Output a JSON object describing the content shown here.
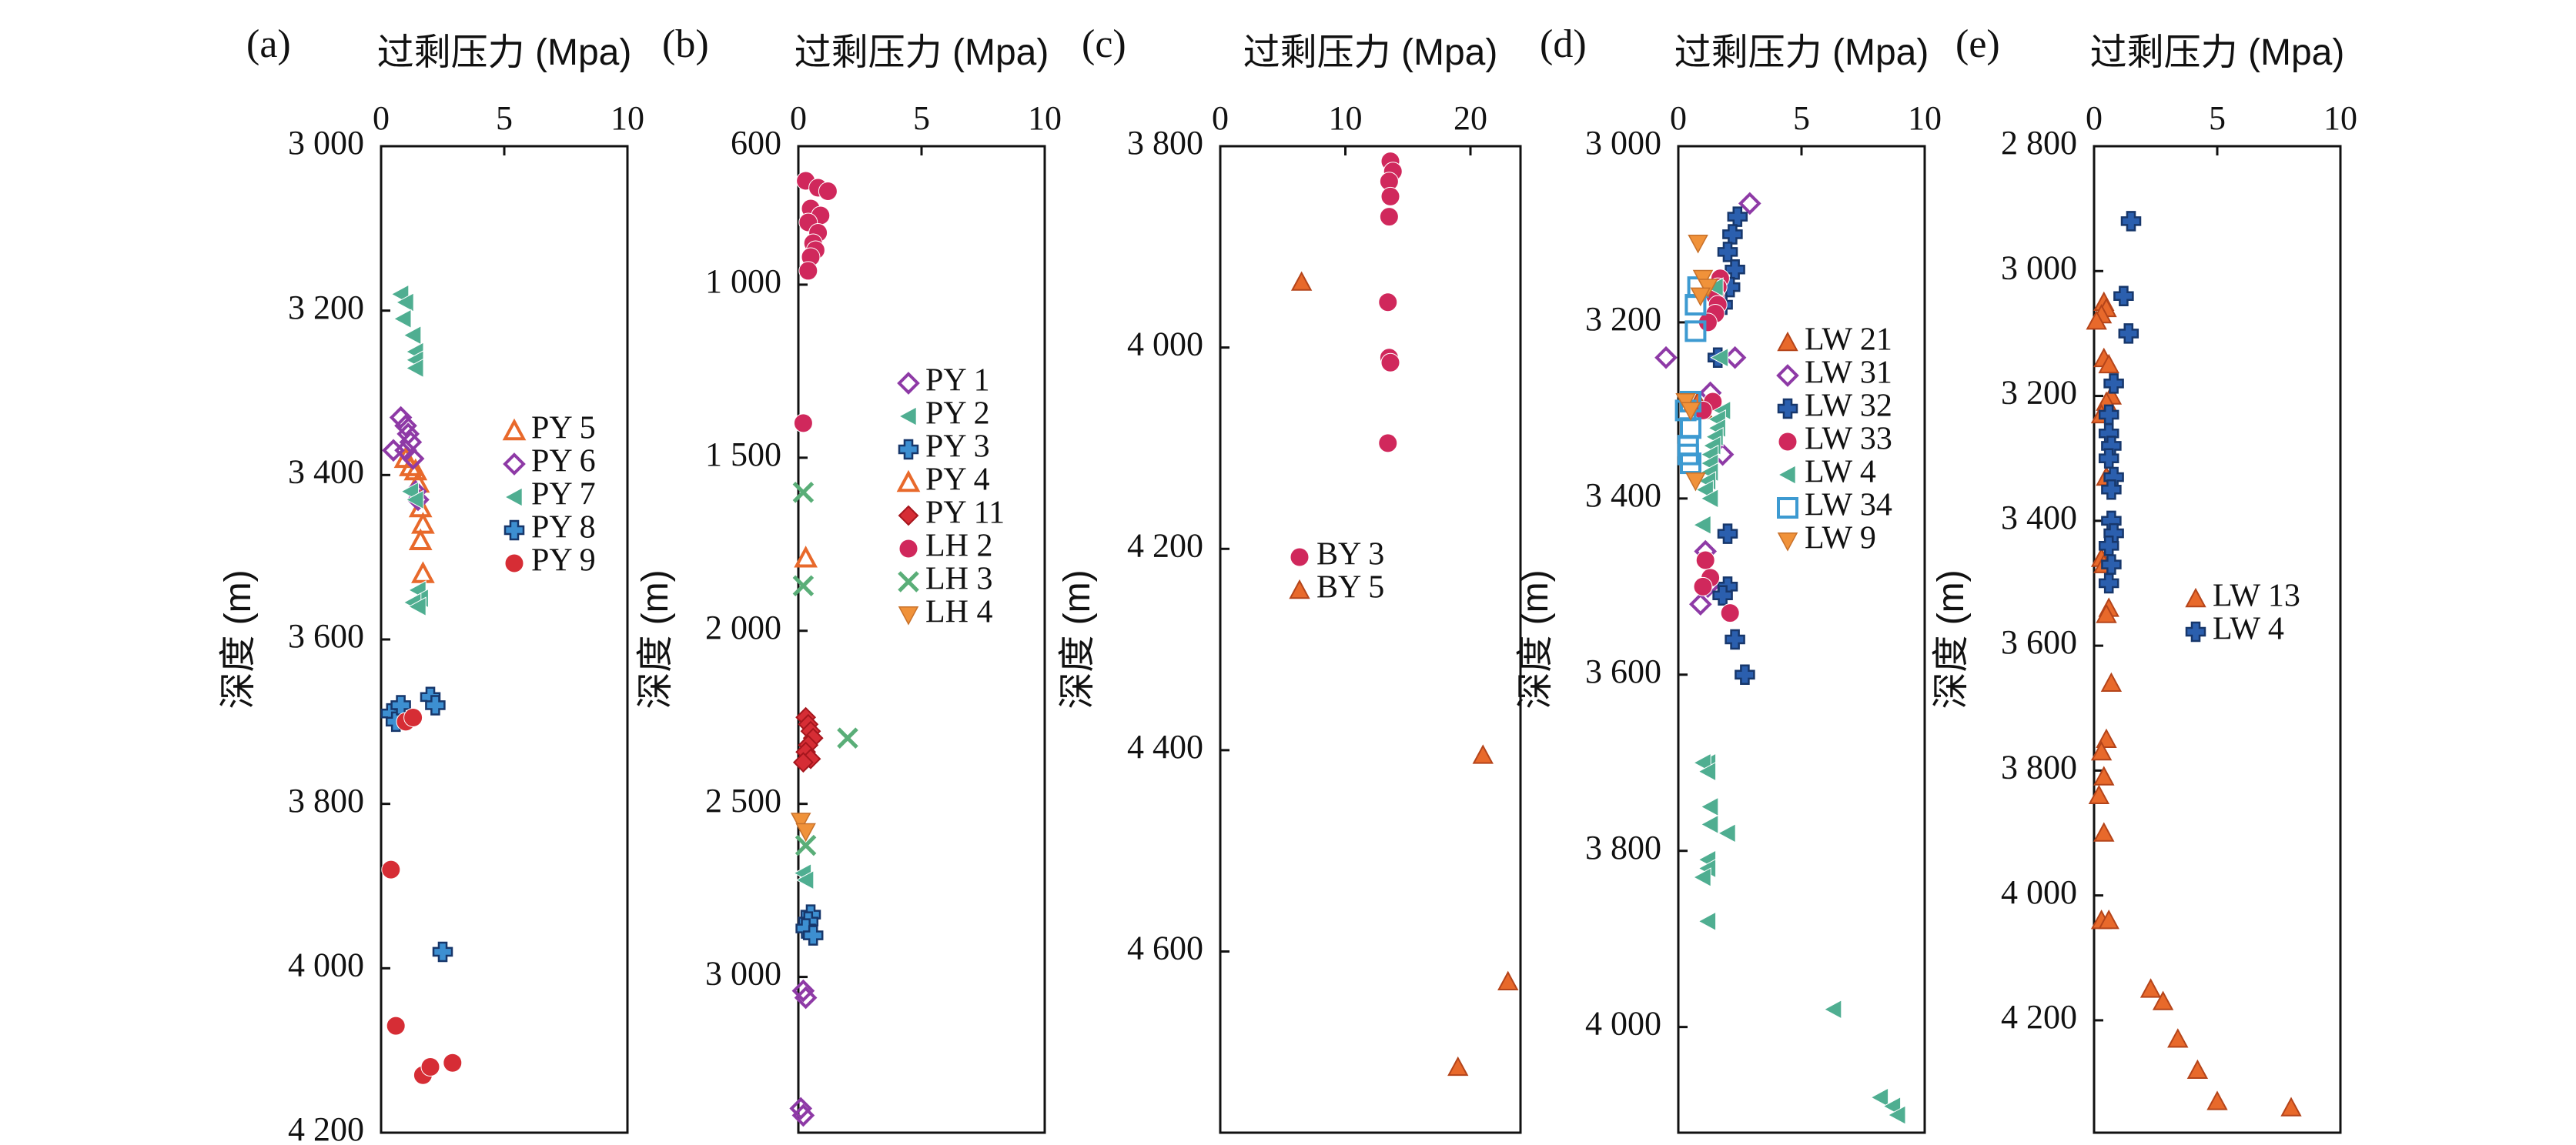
{
  "figure": {
    "shared_axis_labels": {
      "x": "过剩压力 (Mpa)",
      "y": "深度 (m)"
    }
  },
  "chart_data": [
    {
      "id": "a",
      "panel_label": "(a)",
      "type": "scatter",
      "xlabel": "过剩压力 (Mpa)",
      "ylabel": "深度 (m)",
      "xlim": [
        0,
        10
      ],
      "ylim": [
        4200,
        3000
      ],
      "y_inverted": true,
      "xticks": [
        0,
        5,
        10
      ],
      "xtick_labels": [
        "0",
        "5",
        "10"
      ],
      "yticks": [
        3000,
        3200,
        3400,
        3600,
        3800,
        4000,
        4200
      ],
      "ytick_labels": [
        "3 000",
        "3 200",
        "3 400",
        "3 600",
        "3 800",
        "4 000",
        "4 200"
      ],
      "legend_position": "right",
      "series": [
        {
          "name": "PY 5",
          "marker": "triangle-up-open",
          "color": "#e8692b",
          "x": [
            1.0,
            1.2,
            1.4,
            1.5,
            1.6,
            1.7,
            1.6,
            1.7
          ],
          "y": [
            3380,
            3390,
            3395,
            3410,
            3440,
            3460,
            3480,
            3520
          ]
        },
        {
          "name": "PY 6",
          "marker": "diamond-open",
          "color": "#8e3aa6",
          "x": [
            0.8,
            1.0,
            1.1,
            1.2,
            1.0,
            0.5,
            1.3,
            1.4,
            1.5
          ],
          "y": [
            3330,
            3340,
            3350,
            3360,
            3370,
            3370,
            3380,
            3420,
            3430
          ]
        },
        {
          "name": "PY 7",
          "marker": "triangle-left",
          "color": "#4fae91",
          "x": [
            0.8,
            1.0,
            0.9,
            1.3,
            1.4,
            1.4,
            1.4,
            1.2,
            1.4,
            1.5,
            1.6,
            1.3,
            1.5
          ],
          "y": [
            3180,
            3190,
            3210,
            3230,
            3250,
            3260,
            3270,
            3420,
            3430,
            3540,
            3550,
            3555,
            3560
          ]
        },
        {
          "name": "PY 8",
          "marker": "plus",
          "color": "#3d8fd1",
          "x": [
            0.4,
            0.6,
            0.8,
            2.0,
            2.2,
            2.5
          ],
          "y": [
            3690,
            3700,
            3680,
            3670,
            3680,
            3980
          ]
        },
        {
          "name": "PY 9",
          "marker": "circle",
          "color": "#d62d35",
          "x": [
            1.0,
            1.3,
            0.4,
            0.6,
            1.7,
            2.0,
            2.9
          ],
          "y": [
            3700,
            3695,
            3880,
            4070,
            4130,
            4120,
            4115
          ]
        }
      ]
    },
    {
      "id": "b",
      "panel_label": "(b)",
      "type": "scatter",
      "xlabel": "过剩压力 (Mpa)",
      "ylabel": "深度 (m)",
      "xlim": [
        0,
        10
      ],
      "ylim": [
        3450,
        600
      ],
      "y_inverted": true,
      "xticks": [
        0,
        5,
        10
      ],
      "xtick_labels": [
        "0",
        "5",
        "10"
      ],
      "yticks": [
        600,
        1000,
        1500,
        2000,
        2500,
        3000
      ],
      "ytick_labels": [
        "600",
        "1 000",
        "1 500",
        "2 000",
        "2 500",
        "3 000"
      ],
      "legend_position": "right",
      "series": [
        {
          "name": "PY 1",
          "marker": "diamond-open",
          "color": "#8e3aa6",
          "x": [
            0.2,
            0.3,
            0.1,
            0.2
          ],
          "y": [
            3040,
            3060,
            3380,
            3400
          ]
        },
        {
          "name": "PY 2",
          "marker": "triangle-left",
          "color": "#4fae91",
          "x": [
            0.2,
            0.3
          ],
          "y": [
            2700,
            2720
          ]
        },
        {
          "name": "PY 3",
          "marker": "plus",
          "color": "#3d8fd1",
          "x": [
            0.5,
            0.4,
            0.3,
            0.6
          ],
          "y": [
            2820,
            2840,
            2860,
            2880
          ]
        },
        {
          "name": "PY 4",
          "marker": "triangle-up-open",
          "color": "#e8692b",
          "x": [
            0.3
          ],
          "y": [
            1790
          ]
        },
        {
          "name": "PY 11",
          "marker": "diamond",
          "color": "#d62d35",
          "x": [
            0.3,
            0.4,
            0.5,
            0.6,
            0.4,
            0.3,
            0.5,
            0.2
          ],
          "y": [
            2250,
            2270,
            2290,
            2310,
            2330,
            2350,
            2370,
            2380
          ]
        },
        {
          "name": "LH 2",
          "marker": "circle",
          "color": "#d0285c",
          "x": [
            0.3,
            0.8,
            1.2,
            0.5,
            0.9,
            0.4,
            0.8,
            0.6,
            0.7,
            0.5,
            0.4,
            0.2
          ],
          "y": [
            700,
            720,
            730,
            780,
            800,
            820,
            850,
            880,
            900,
            920,
            960,
            1400
          ]
        },
        {
          "name": "LH 3",
          "marker": "cross",
          "color": "#5aae78",
          "x": [
            0.2,
            0.2,
            2.0,
            0.3
          ],
          "y": [
            1600,
            1870,
            2310,
            2620
          ]
        },
        {
          "name": "LH 4",
          "marker": "triangle-down",
          "color": "#f0923a",
          "x": [
            0.1,
            0.3
          ],
          "y": [
            2550,
            2580
          ]
        }
      ]
    },
    {
      "id": "c",
      "panel_label": "(c)",
      "type": "scatter",
      "xlabel": "过剩压力 (Mpa)",
      "ylabel": "深度 (m)",
      "xlim": [
        0,
        24
      ],
      "ylim": [
        4780,
        3800
      ],
      "y_inverted": true,
      "xticks": [
        0,
        10,
        20
      ],
      "xtick_labels": [
        "0",
        "10",
        "20"
      ],
      "yticks": [
        3800,
        4000,
        4200,
        4400,
        4600
      ],
      "ytick_labels": [
        "3 800",
        "4 000",
        "4 200",
        "4 400",
        "4 600"
      ],
      "legend_position": "center",
      "series": [
        {
          "name": "BY 3",
          "marker": "circle",
          "color": "#d0285c",
          "x": [
            13.6,
            13.8,
            13.5,
            13.6,
            13.5,
            13.4,
            13.5,
            13.6,
            13.4
          ],
          "y": [
            3815,
            3825,
            3835,
            3850,
            3870,
            3955,
            4010,
            4015,
            4095
          ]
        },
        {
          "name": "BY 5",
          "marker": "triangle-up",
          "color": "#e8692b",
          "x": [
            6.5,
            21.0,
            23.0,
            19.0
          ],
          "y": [
            3935,
            4405,
            4630,
            4715
          ]
        }
      ]
    },
    {
      "id": "d",
      "panel_label": "(d)",
      "type": "scatter",
      "xlabel": "过剩压力 (Mpa)",
      "ylabel": "深度 (m)",
      "xlim": [
        0,
        10
      ],
      "ylim": [
        4120,
        3000
      ],
      "y_inverted": true,
      "xticks": [
        0,
        5,
        10
      ],
      "xtick_labels": [
        "0",
        "5",
        "10"
      ],
      "yticks": [
        3000,
        3200,
        3400,
        3600,
        3800,
        4000
      ],
      "ytick_labels": [
        "3 000",
        "3 200",
        "3 400",
        "3 600",
        "3 800",
        "4 000"
      ],
      "legend_position": "right",
      "series": [
        {
          "name": "LW 21",
          "marker": "triangle-up",
          "color": "#e8692b",
          "x": [
            0.8,
            1.0
          ],
          "y": [
            3290,
            3300
          ]
        },
        {
          "name": "LW 31",
          "marker": "diamond-open",
          "color": "#8e3aa6",
          "x": [
            2.9,
            -0.5,
            2.3,
            1.3,
            1.8,
            1.1,
            1.2,
            0.9
          ],
          "y": [
            3065,
            3240,
            3240,
            3280,
            3350,
            3460,
            3500,
            3520
          ]
        },
        {
          "name": "LW 32",
          "marker": "plus",
          "color": "#2b5fae",
          "x": [
            2.4,
            2.2,
            2.0,
            2.3,
            2.1,
            1.8,
            1.6,
            2.0,
            2.0,
            1.8,
            2.3,
            2.7
          ],
          "y": [
            3080,
            3100,
            3120,
            3140,
            3160,
            3180,
            3240,
            3440,
            3500,
            3510,
            3560,
            3600
          ]
        },
        {
          "name": "LW 33",
          "marker": "circle",
          "color": "#d0285c",
          "x": [
            1.7,
            1.6,
            1.5,
            1.6,
            1.5,
            1.2,
            1.4,
            1.0,
            1.1,
            1.3,
            2.1,
            1.0
          ],
          "y": [
            3150,
            3160,
            3170,
            3180,
            3190,
            3200,
            3290,
            3300,
            3470,
            3490,
            3530,
            3500
          ]
        },
        {
          "name": "LW 4",
          "marker": "triangle-left",
          "color": "#4fae91",
          "x": [
            1.5,
            1.7,
            1.8,
            1.6,
            1.6,
            1.5,
            1.4,
            1.3,
            1.3,
            1.3,
            1.2,
            1.1,
            1.3,
            1.0,
            1.2,
            1.0,
            1.2,
            1.3,
            1.3,
            2.0,
            1.2,
            1.2,
            1.0,
            1.2,
            6.3,
            8.2,
            8.7,
            8.9
          ],
          "y": [
            3160,
            3240,
            3300,
            3310,
            3320,
            3330,
            3340,
            3350,
            3360,
            3370,
            3380,
            3390,
            3400,
            3430,
            3700,
            3700,
            3710,
            3750,
            3770,
            3780,
            3810,
            3820,
            3830,
            3880,
            3980,
            4080,
            4090,
            4100
          ]
        },
        {
          "name": "LW 34",
          "marker": "square-open",
          "color": "#3d9ad1",
          "x": [
            0.8,
            0.7,
            0.7,
            0.5,
            0.3,
            0.5,
            0.4,
            0.4,
            0.5
          ],
          "y": [
            3160,
            3180,
            3210,
            3290,
            3300,
            3320,
            3340,
            3350,
            3360
          ]
        },
        {
          "name": "LW 9",
          "marker": "triangle-down",
          "color": "#f0923a",
          "x": [
            0.8,
            1.0,
            1.2,
            0.9,
            0.3,
            0.5,
            0.7
          ],
          "y": [
            3110,
            3150,
            3160,
            3170,
            3290,
            3300,
            3380
          ]
        }
      ]
    },
    {
      "id": "e",
      "panel_label": "(e)",
      "type": "scatter",
      "xlabel": "过剩压力 (Mpa)",
      "ylabel": "深度 (m)",
      "xlim": [
        0,
        10
      ],
      "ylim": [
        4380,
        2800
      ],
      "y_inverted": true,
      "xticks": [
        0,
        5,
        10
      ],
      "xtick_labels": [
        "0",
        "5",
        "10"
      ],
      "yticks": [
        2800,
        3000,
        3200,
        3400,
        3600,
        3800,
        4000,
        4200
      ],
      "ytick_labels": [
        "2 800",
        "3 000",
        "3 200",
        "3 400",
        "3 600",
        "3 800",
        "4 000",
        "4 200"
      ],
      "legend_position": "right",
      "series": [
        {
          "name": "LW 13",
          "marker": "triangle-up",
          "color": "#e8692b",
          "x": [
            0.4,
            0.5,
            0.3,
            0.1,
            0.4,
            0.6,
            0.7,
            0.5,
            0.3,
            0.5,
            0.3,
            0.4,
            0.6,
            0.5,
            0.7,
            0.5,
            0.3,
            0.4,
            0.2,
            0.4,
            0.3,
            0.6,
            2.3,
            2.8,
            3.4,
            4.2,
            5.0,
            8.0
          ],
          "y": [
            3050,
            3060,
            3070,
            3080,
            3140,
            3150,
            3200,
            3210,
            3230,
            3330,
            3460,
            3470,
            3540,
            3550,
            3660,
            3750,
            3770,
            3810,
            3840,
            3900,
            4040,
            4040,
            4150,
            4170,
            4230,
            4280,
            4330,
            4340
          ]
        },
        {
          "name": "LW 4",
          "marker": "plus",
          "color": "#2b5fae",
          "x": [
            1.5,
            1.2,
            1.4,
            0.8,
            0.6,
            0.6,
            0.7,
            0.6,
            0.8,
            0.7,
            0.7,
            0.8,
            0.6,
            0.7,
            0.6
          ],
          "y": [
            2920,
            3040,
            3100,
            3180,
            3230,
            3260,
            3280,
            3300,
            3330,
            3350,
            3400,
            3420,
            3440,
            3470,
            3500
          ]
        }
      ]
    }
  ]
}
